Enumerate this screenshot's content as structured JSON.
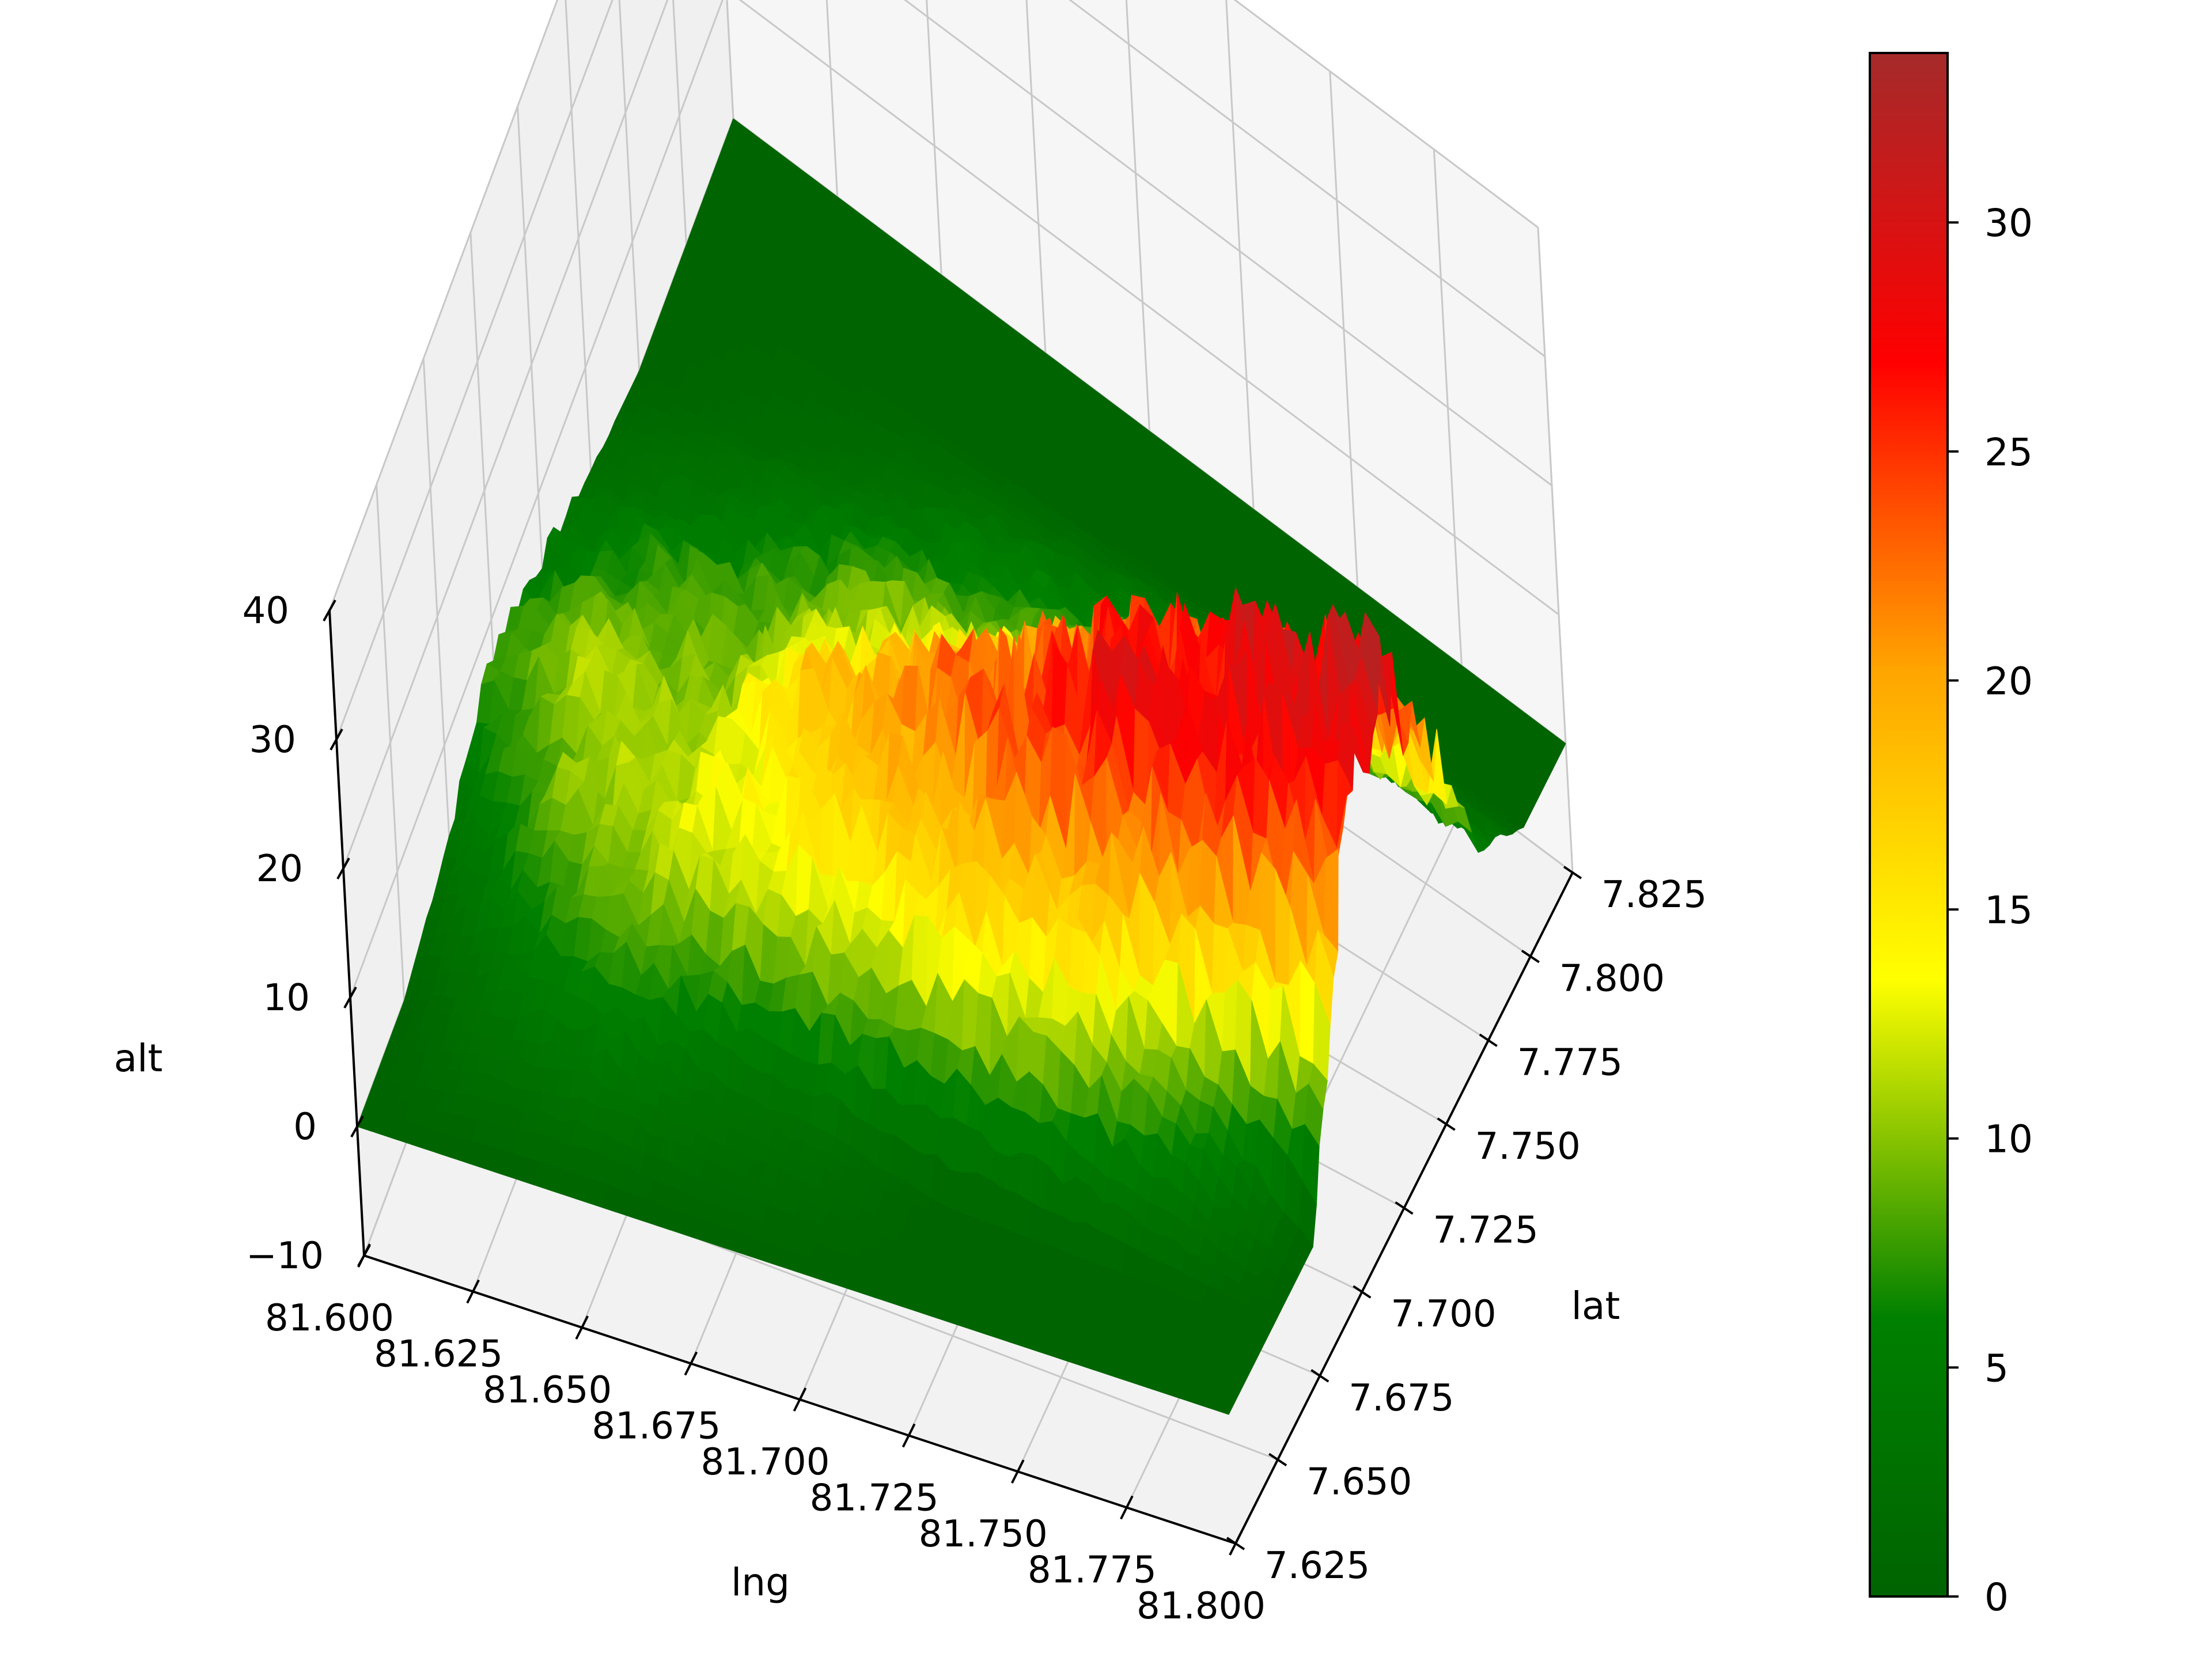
{
  "chart_data": {
    "type": "surface3d",
    "title": "",
    "xlabel": "lng",
    "ylabel": "lat",
    "zlabel": "alt",
    "xlim": [
      81.6,
      81.8
    ],
    "ylim": [
      7.625,
      7.825
    ],
    "zlim": [
      -10,
      40
    ],
    "x_ticks": [
      "81.600",
      "81.625",
      "81.650",
      "81.675",
      "81.700",
      "81.725",
      "81.750",
      "81.775",
      "81.800"
    ],
    "y_ticks": [
      "7.625",
      "7.650",
      "7.675",
      "7.700",
      "7.725",
      "7.750",
      "7.775",
      "7.800",
      "7.825"
    ],
    "z_ticks": [
      "−10",
      "0",
      "10",
      "20",
      "30",
      "40"
    ],
    "z_tick_values": [
      -10,
      0,
      10,
      20,
      30,
      40
    ],
    "grid": true,
    "colorbar": {
      "range": [
        0,
        33.7
      ],
      "ticks": [
        "0",
        "5",
        "10",
        "15",
        "20",
        "25",
        "30"
      ],
      "tick_values": [
        0,
        5,
        10,
        15,
        20,
        25,
        30
      ],
      "colors": [
        "#006400",
        "#008000",
        "#ffff00",
        "#ffa500",
        "#ff0000",
        "#a52a2a"
      ]
    },
    "surface": {
      "description_grid_lng": [
        81.6,
        81.625,
        81.65,
        81.675,
        81.7,
        81.725,
        81.75,
        81.775,
        81.8
      ],
      "description_grid_lat": [
        7.625,
        7.65,
        7.675,
        7.7,
        7.725,
        7.75,
        7.775,
        7.8,
        7.825
      ],
      "alt": [
        [
          0,
          0,
          3,
          8,
          5,
          2,
          0,
          0,
          0
        ],
        [
          0,
          4,
          9,
          11,
          8,
          4,
          1,
          0,
          0
        ],
        [
          0,
          6,
          12,
          10,
          9,
          6,
          2,
          0,
          0
        ],
        [
          0,
          3,
          14,
          17,
          12,
          8,
          4,
          0,
          0
        ],
        [
          0,
          2,
          16,
          21,
          15,
          8,
          5,
          0,
          0
        ],
        [
          0,
          0,
          18,
          25,
          20,
          10,
          6,
          0,
          0
        ],
        [
          0,
          0,
          15,
          28,
          26,
          14,
          7,
          0,
          0
        ],
        [
          0,
          0,
          8,
          27,
          30,
          18,
          6,
          0,
          0
        ],
        [
          0,
          0,
          0,
          22,
          32,
          20,
          5,
          0,
          0
        ]
      ]
    }
  }
}
